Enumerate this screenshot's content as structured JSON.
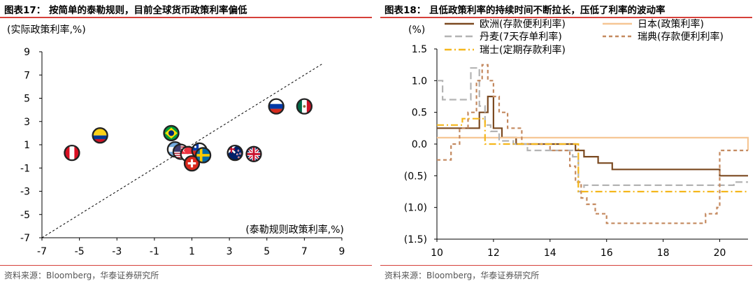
{
  "left": {
    "fig_title": "图表17：  按简单的泰勒规则，目前全球货币政策利率偏低",
    "source": "资料来源：Bloomberg，华泰证券研究所",
    "chart_data": {
      "type": "scatter",
      "title": "图表17：  按简单的泰勒规则，目前全球货币政策利率偏低",
      "xlabel": "(泰勒规则政策利率,%)",
      "ylabel": "(实际政策利率,%)",
      "xlim": [
        -7,
        9
      ],
      "ylim": [
        -7,
        9
      ],
      "xticks": [
        -7,
        -5,
        -3,
        -1,
        1,
        3,
        5,
        7,
        9
      ],
      "yticks": [
        9,
        7,
        5,
        3,
        1,
        -1,
        -3,
        -5,
        -7
      ],
      "reference_line": {
        "style": "dashed",
        "from": [
          -7,
          -7
        ],
        "to": [
          8,
          8
        ]
      },
      "points": [
        {
          "country": "Peru",
          "flag": "peru-flag",
          "x": -5.4,
          "y": 0.3
        },
        {
          "country": "Colombia",
          "flag": "colombia-flag",
          "x": -3.9,
          "y": 1.8
        },
        {
          "country": "Brazil",
          "flag": "brazil-flag",
          "x": -0.1,
          "y": 2.0
        },
        {
          "country": "Argentina",
          "flag": "argentina-flag",
          "x": 0.1,
          "y": 0.6
        },
        {
          "country": "United States",
          "flag": "usa-flag",
          "x": 0.4,
          "y": 0.4
        },
        {
          "country": "Singapore",
          "flag": "singapore-flag",
          "x": 0.8,
          "y": 0.2
        },
        {
          "country": "Switzerland",
          "flag": "switzerland-flag",
          "x": 1.0,
          "y": -0.6
        },
        {
          "country": "Chile",
          "flag": "chile-flag",
          "x": 1.4,
          "y": 0.5
        },
        {
          "country": "Sweden",
          "flag": "sweden-flag",
          "x": 1.6,
          "y": 0.1
        },
        {
          "country": "New Zealand",
          "flag": "new-zealand-flag",
          "x": 3.3,
          "y": 0.3
        },
        {
          "country": "United Kingdom",
          "flag": "uk-flag",
          "x": 4.3,
          "y": 0.2
        },
        {
          "country": "Russia",
          "flag": "russia-flag",
          "x": 5.5,
          "y": 4.3
        },
        {
          "country": "Mexico",
          "flag": "mexico-flag",
          "x": 7.0,
          "y": 4.3
        }
      ]
    }
  },
  "right": {
    "fig_title": "图表18：  且低政策利率的持续时间不断拉长，压低了利率的波动率",
    "source": "资料来源：Bloomberg，华泰证券研究所",
    "chart_data": {
      "type": "line",
      "title": "图表18：  且低政策利率的持续时间不断拉长，压低了利率的波动率",
      "ylabel": "(%)",
      "xlabel": "",
      "xlim": [
        10,
        21
      ],
      "ylim": [
        -1.5,
        1.5
      ],
      "xticks": [
        10,
        12,
        14,
        16,
        18,
        20
      ],
      "xtick_labels": [
        "10",
        "12",
        "14",
        "16",
        "18",
        "20"
      ],
      "yticks": [
        1.5,
        1.0,
        0.5,
        0.0,
        -0.5,
        -1.0,
        -1.5
      ],
      "ytick_labels": [
        "1.5",
        "1.0",
        "0.5",
        "0.0",
        "(0.5)",
        "(1.0)",
        "(1.5)"
      ],
      "step": true,
      "series": [
        {
          "name": "欧洲(存款便利利率)",
          "color": "#7b4a21",
          "dash": "solid",
          "x": [
            10,
            11.0,
            11.5,
            11.8,
            12.0,
            12.3,
            12.8,
            14.6,
            14.9,
            15.2,
            15.7,
            16.2,
            19.9,
            20.0,
            21
          ],
          "y": [
            0.25,
            0.25,
            0.5,
            0.75,
            0.25,
            0.1,
            0.0,
            0.0,
            -0.1,
            -0.2,
            -0.3,
            -0.4,
            -0.4,
            -0.5,
            -0.5
          ]
        },
        {
          "name": "日本(政策利率)",
          "color": "#f6c694",
          "dash": "solid",
          "x": [
            10,
            16.1,
            21
          ],
          "y": [
            0.1,
            0.1,
            -0.1
          ]
        },
        {
          "name": "丹麦(7天存单利率)",
          "color": "#b3b3b3",
          "dash": "longdash",
          "x": [
            10,
            10.2,
            10.8,
            11.2,
            11.5,
            11.7,
            11.9,
            12.2,
            12.7,
            13.2,
            14.3,
            14.8,
            15.0,
            15.2,
            16.0,
            20.1,
            20.5,
            21
          ],
          "y": [
            1.0,
            0.7,
            0.7,
            1.2,
            0.6,
            0.3,
            0.2,
            0.05,
            0.0,
            -0.1,
            -0.1,
            -0.2,
            -0.75,
            -0.65,
            -0.65,
            -0.65,
            -0.6,
            -0.6
          ]
        },
        {
          "name": "瑞典(存款便利利率)",
          "color": "#c4895f",
          "dash": "shortdash",
          "x": [
            10,
            10.5,
            10.8,
            11.1,
            11.4,
            11.6,
            11.8,
            12.0,
            12.2,
            12.5,
            13.0,
            14.0,
            14.7,
            14.9,
            15.1,
            15.3,
            15.6,
            16.0,
            19.0,
            19.5,
            19.9,
            20.0,
            21
          ],
          "y": [
            -0.25,
            0.0,
            0.25,
            0.5,
            1.0,
            1.25,
            1.0,
            0.75,
            0.5,
            0.25,
            0.0,
            -0.1,
            -0.35,
            -0.6,
            -0.85,
            -0.95,
            -1.1,
            -1.25,
            -1.25,
            -1.1,
            -1.0,
            -0.1,
            -0.1
          ]
        },
        {
          "name": "瑞士(定期存款利率)",
          "color": "#f5b71c",
          "dash": "dashdot",
          "x": [
            10,
            10.9,
            11.2,
            11.7,
            14.9,
            15.0,
            21
          ],
          "y": [
            0.3,
            0.4,
            0.4,
            0.0,
            0.0,
            -0.75,
            -0.75
          ]
        }
      ]
    }
  }
}
